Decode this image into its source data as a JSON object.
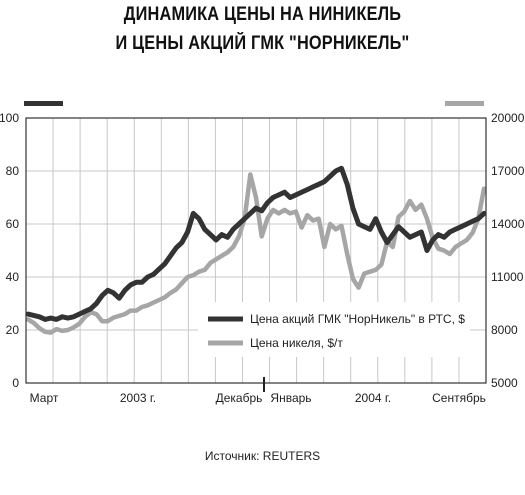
{
  "title": {
    "line1": "ДИНАМИКА ЦЕНЫ НА НИНИКЕЛЬ",
    "line2": "И ЦЕНЫ АКЦИЙ ГМК \"НОРНИКЕЛЬ\""
  },
  "source": "Источник: REUTERS",
  "chart_data": {
    "type": "line",
    "x_tick_labels": [
      "Март",
      "2003 г.",
      "Декабрь",
      "Январь",
      "2004 г.",
      "Сентябрь"
    ],
    "left_axis": {
      "ticks": [
        0,
        20,
        40,
        60,
        80,
        100
      ],
      "range": [
        0,
        100
      ]
    },
    "right_axis": {
      "ticks": [
        5000,
        8000,
        11000,
        14000,
        17000,
        20000
      ],
      "range": [
        5000,
        20000
      ]
    },
    "grid": true,
    "legend_placement": "bottom-right",
    "series": [
      {
        "name": "Цена акций ГМК \"НорНикель\" в РТС, $",
        "axis": "left",
        "color": "#333333",
        "x": [
          0,
          1,
          2,
          3,
          4,
          5,
          6,
          7,
          8,
          9,
          10,
          11,
          12,
          13,
          14,
          15,
          16,
          17,
          18,
          19,
          20,
          21,
          22,
          23,
          24,
          25,
          26,
          27,
          28,
          29,
          30,
          31,
          32,
          33,
          34,
          35,
          36,
          37,
          38,
          39,
          40,
          41,
          42,
          43,
          44,
          45,
          46,
          47,
          48,
          49,
          50,
          51,
          52,
          53,
          54,
          55,
          56,
          57,
          58,
          59,
          60,
          61,
          62,
          63,
          64,
          65,
          66,
          67,
          68,
          69,
          70,
          71,
          72,
          73,
          74,
          75,
          76,
          77,
          78,
          79,
          80
        ],
        "values": [
          26,
          25.5,
          25,
          24,
          24.5,
          24,
          25,
          24.5,
          25,
          26,
          27,
          28,
          30,
          33,
          35,
          34,
          32,
          35,
          37,
          38,
          38,
          40,
          41,
          43,
          45,
          48,
          51,
          53,
          57,
          64,
          62,
          58,
          56,
          54,
          56,
          55,
          58,
          60,
          62,
          64,
          66,
          65,
          68,
          70,
          71,
          72,
          70,
          71,
          72,
          73,
          74,
          75,
          76,
          78,
          80,
          81,
          75,
          66,
          60,
          59,
          58,
          62,
          57,
          53,
          56,
          59,
          57,
          55,
          56,
          57,
          50,
          54,
          56,
          55,
          57,
          58,
          59,
          60,
          61,
          62,
          64
        ]
      },
      {
        "name": "Цена никеля, $/т",
        "axis": "right",
        "color": "#a6a6a6",
        "x": [
          0,
          1,
          2,
          3,
          4,
          5,
          6,
          7,
          8,
          9,
          10,
          11,
          12,
          13,
          14,
          15,
          16,
          17,
          18,
          19,
          20,
          21,
          22,
          23,
          24,
          25,
          26,
          27,
          28,
          29,
          30,
          31,
          32,
          33,
          34,
          35,
          36,
          37,
          38,
          39,
          40,
          41,
          42,
          43,
          44,
          45,
          46,
          47,
          48,
          49,
          50,
          51,
          52,
          53,
          54,
          55,
          56,
          57,
          58,
          59,
          60,
          61,
          62,
          63,
          64,
          65,
          66,
          67,
          68,
          69,
          70,
          71,
          72,
          73,
          74,
          75,
          76,
          77,
          78,
          79,
          80
        ],
        "values": [
          8600,
          8400,
          8100,
          7900,
          7850,
          8050,
          7950,
          8000,
          8150,
          8350,
          8750,
          9000,
          8900,
          8500,
          8500,
          8700,
          8800,
          8900,
          9100,
          9100,
          9300,
          9400,
          9550,
          9700,
          9850,
          10100,
          10300,
          10650,
          11000,
          11100,
          11300,
          11400,
          11800,
          12000,
          12200,
          12400,
          12700,
          13300,
          14300,
          16800,
          15500,
          13300,
          14300,
          14800,
          14600,
          14800,
          14600,
          14700,
          13800,
          14500,
          14200,
          14300,
          12700,
          14000,
          13700,
          13900,
          12300,
          10900,
          10400,
          11200,
          11300,
          11400,
          11700,
          13000,
          12700,
          14400,
          14700,
          15300,
          14800,
          15100,
          14300,
          13200,
          12600,
          12500,
          12300,
          12700,
          12900,
          13100,
          13500,
          14300,
          16000
        ]
      }
    ]
  }
}
